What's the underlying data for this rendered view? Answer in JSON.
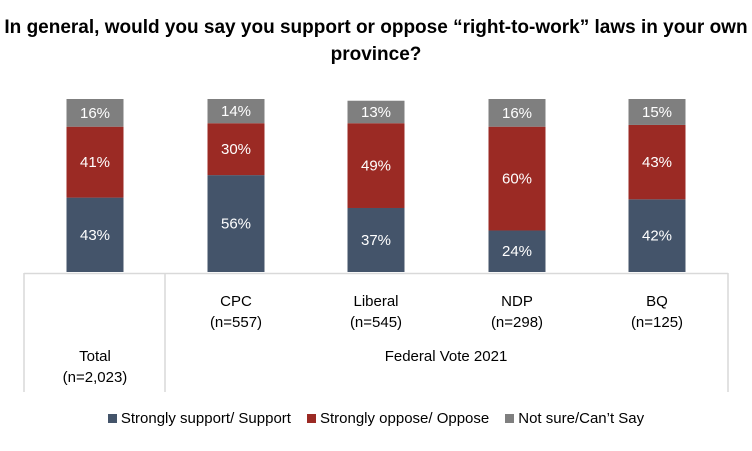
{
  "chart_data": {
    "type": "bar",
    "stacked": true,
    "title": "In general, would you say you support or oppose “right-to-work” laws in your own province?",
    "categories": [
      "Total\n(n=2,023)",
      "CPC\n(n=557)",
      "Liberal\n(n=545)",
      "NDP\n(n=298)",
      "BQ\n(n=125)"
    ],
    "category_lines": [
      [
        "Total",
        "(n=2,023)"
      ],
      [
        "CPC",
        "(n=557)"
      ],
      [
        "Liberal",
        "(n=545)"
      ],
      [
        "NDP",
        "(n=298)"
      ],
      [
        "BQ",
        "(n=125)"
      ]
    ],
    "group_label": "Federal Vote 2021",
    "series": [
      {
        "name": "Strongly support/ Support",
        "values": [
          43,
          56,
          37,
          24,
          42
        ],
        "color": "#44546A"
      },
      {
        "name": "Strongly oppose/ Oppose",
        "values": [
          41,
          30,
          49,
          60,
          43
        ],
        "color": "#9B2A24"
      },
      {
        "name": "Not sure/Can’t Say",
        "values": [
          16,
          14,
          13,
          16,
          15
        ],
        "color": "#7F7F7F"
      }
    ],
    "ylim": [
      0,
      100
    ],
    "value_format": "%",
    "grid": false,
    "legend_position": "bottom"
  }
}
